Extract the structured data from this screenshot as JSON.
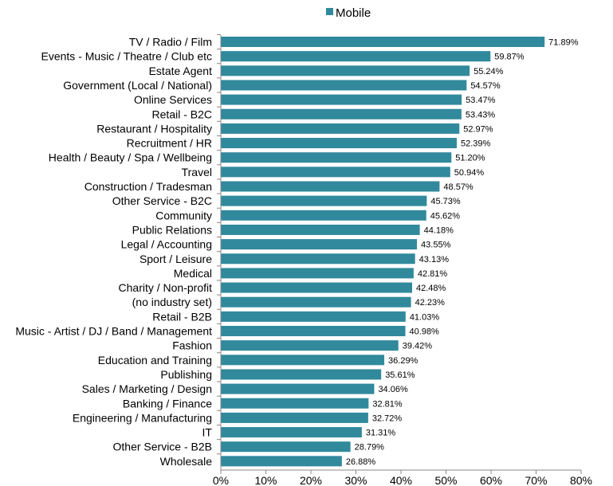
{
  "chart_data": {
    "type": "bar",
    "orientation": "horizontal",
    "categories": [
      "TV / Radio / Film",
      "Events - Music / Theatre / Club etc",
      "Estate Agent",
      "Government (Local / National)",
      "Online Services",
      "Retail - B2C",
      "Restaurant / Hospitality",
      "Recruitment / HR",
      "Health / Beauty / Spa / Wellbeing",
      "Travel",
      "Construction / Tradesman",
      "Other Service - B2C",
      "Community",
      "Public Relations",
      "Legal / Accounting",
      "Sport / Leisure",
      "Medical",
      "Charity / Non-profit",
      "(no industry set)",
      "Retail - B2B",
      "Music - Artist / DJ / Band / Management",
      "Fashion",
      "Education and Training",
      "Publishing",
      "Sales / Marketing / Design",
      "Banking / Finance",
      "Engineering / Manufacturing",
      "IT",
      "Other Service - B2B",
      "Wholesale"
    ],
    "series": [
      {
        "name": "Mobile",
        "color": "#31899c",
        "values": [
          71.89,
          59.87,
          55.24,
          54.57,
          53.47,
          53.43,
          52.97,
          52.39,
          51.2,
          50.94,
          48.57,
          45.73,
          45.62,
          44.18,
          43.55,
          43.13,
          42.81,
          42.48,
          42.23,
          41.03,
          40.98,
          39.42,
          36.29,
          35.61,
          34.06,
          32.81,
          32.72,
          31.31,
          28.79,
          26.88
        ],
        "labels": [
          "71.89%",
          "59.87%",
          "55.24%",
          "54.57%",
          "53.47%",
          "53.43%",
          "52.97%",
          "52.39%",
          "51.20%",
          "50.94%",
          "48.57%",
          "45.73%",
          "45.62%",
          "44.18%",
          "43.55%",
          "43.13%",
          "42.81%",
          "42.48%",
          "42.23%",
          "41.03%",
          "40.98%",
          "39.42%",
          "36.29%",
          "35.61%",
          "34.06%",
          "32.81%",
          "32.72%",
          "31.31%",
          "28.79%",
          "26.88%"
        ]
      }
    ],
    "xticks": [
      "0%",
      "10%",
      "20%",
      "30%",
      "40%",
      "50%",
      "60%",
      "70%",
      "80%"
    ],
    "xlim": [
      0,
      80
    ],
    "grid": false,
    "legend": "top-center",
    "title": "",
    "xlabel": "",
    "ylabel": ""
  }
}
